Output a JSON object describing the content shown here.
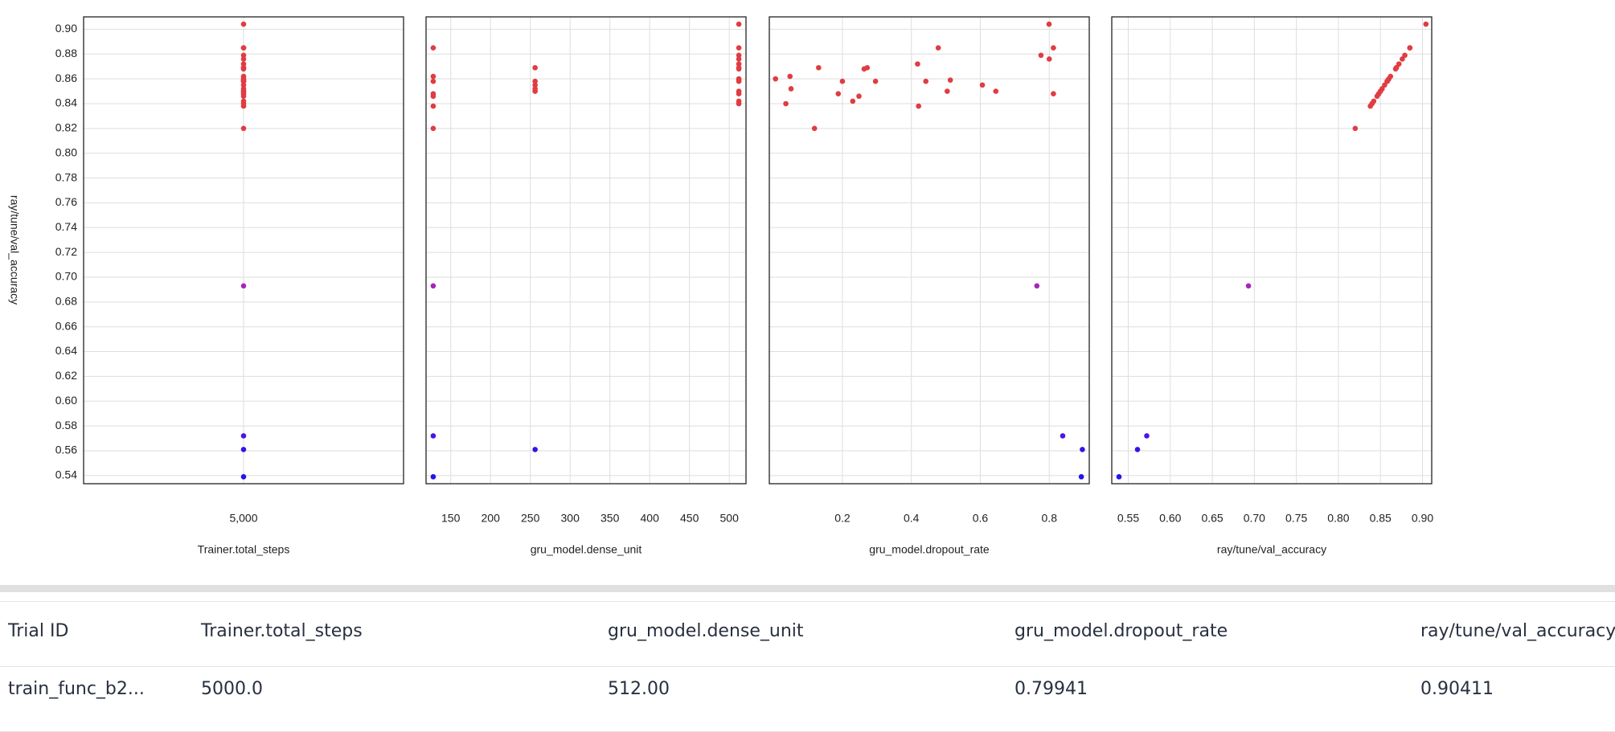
{
  "chart_data": [
    {
      "type": "scatter",
      "xlabel": "Trainer.total_steps",
      "ylabel": "ray/tune/val_accuracy",
      "grid": true,
      "x": [
        5000,
        5000,
        5000,
        5000,
        5000,
        5000,
        5000,
        5000,
        5000,
        5000,
        5000,
        5000,
        5000,
        5000,
        5000,
        5000,
        5000,
        5000,
        5000,
        5000,
        5000,
        5000,
        5000,
        5000,
        5000,
        5000,
        5000,
        5000,
        5000,
        5000
      ],
      "series": [
        {
          "values": [
            0.86,
            0.84,
            0.862,
            0.852,
            0.82,
            0.869,
            0.848,
            0.858,
            0.842,
            0.846,
            0.868,
            0.869,
            0.858,
            0.872,
            0.838,
            0.858,
            0.885,
            0.85,
            0.859,
            0.855,
            0.85,
            0.693,
            0.879,
            0.90411,
            0.876,
            0.885,
            0.848,
            0.572,
            0.539,
            0.561
          ],
          "colors": [
            "#e03c41",
            "#e03c41",
            "#e03c41",
            "#e03c41",
            "#e03c41",
            "#e03c41",
            "#e03c41",
            "#e03c41",
            "#e03c41",
            "#e03c41",
            "#e03c41",
            "#e03c41",
            "#e03c41",
            "#e03c41",
            "#e03c41",
            "#e03c41",
            "#e03c41",
            "#e03c41",
            "#e03c41",
            "#e03c41",
            "#e03c41",
            "#a626b8",
            "#e03c41",
            "#e03c41",
            "#e03c41",
            "#e03c41",
            "#e03c41",
            "#4a16e6",
            "#2315ea",
            "#3a10e8"
          ]
        }
      ],
      "xlim": [
        4000,
        6000
      ],
      "xticks": [
        {
          "value": 5000,
          "label": "5,000"
        }
      ],
      "ylim": [
        0.5334,
        0.91
      ],
      "yticks": [
        {
          "value": 0.54,
          "label": "0.54"
        },
        {
          "value": 0.56,
          "label": "0.56"
        },
        {
          "value": 0.58,
          "label": "0.58"
        },
        {
          "value": 0.6,
          "label": "0.60"
        },
        {
          "value": 0.62,
          "label": "0.62"
        },
        {
          "value": 0.64,
          "label": "0.64"
        },
        {
          "value": 0.66,
          "label": "0.66"
        },
        {
          "value": 0.68,
          "label": "0.68"
        },
        {
          "value": 0.7,
          "label": "0.70"
        },
        {
          "value": 0.72,
          "label": "0.72"
        },
        {
          "value": 0.74,
          "label": "0.74"
        },
        {
          "value": 0.76,
          "label": "0.76"
        },
        {
          "value": 0.78,
          "label": "0.78"
        },
        {
          "value": 0.8,
          "label": "0.80"
        },
        {
          "value": 0.82,
          "label": "0.82"
        },
        {
          "value": 0.84,
          "label": "0.84"
        },
        {
          "value": 0.86,
          "label": "0.86"
        },
        {
          "value": 0.88,
          "label": "0.88"
        },
        {
          "value": 0.9,
          "label": "0.90"
        }
      ]
    },
    {
      "type": "scatter",
      "xlabel": "gru_model.dense_unit",
      "grid": true,
      "x": [
        512,
        512,
        128,
        256,
        128,
        256,
        128,
        128,
        512,
        128,
        512,
        512,
        256,
        512,
        128,
        512,
        128,
        256,
        512,
        256,
        512,
        128,
        512,
        512,
        512,
        512,
        512,
        128,
        128,
        256
      ],
      "series": [
        {
          "values": [
            0.86,
            0.84,
            0.862,
            0.852,
            0.82,
            0.869,
            0.848,
            0.858,
            0.842,
            0.846,
            0.868,
            0.869,
            0.858,
            0.872,
            0.838,
            0.858,
            0.885,
            0.85,
            0.859,
            0.855,
            0.85,
            0.693,
            0.879,
            0.90411,
            0.876,
            0.885,
            0.848,
            0.572,
            0.539,
            0.561
          ]
        }
      ],
      "xlim": [
        119,
        521
      ],
      "xticks": [
        150,
        200,
        250,
        300,
        350,
        400,
        450,
        500
      ],
      "ylim": [
        0.5334,
        0.91
      ]
    },
    {
      "type": "scatter",
      "xlabel": "gru_model.dropout_rate",
      "grid": true,
      "x": [
        0.006,
        0.036,
        0.048,
        0.051,
        0.119,
        0.131,
        0.188,
        0.2,
        0.23,
        0.248,
        0.263,
        0.272,
        0.296,
        0.418,
        0.421,
        0.442,
        0.478,
        0.504,
        0.513,
        0.606,
        0.645,
        0.764,
        0.776,
        0.79941,
        0.8,
        0.812,
        0.812,
        0.839,
        0.893,
        0.896
      ],
      "series": [
        {
          "values": [
            0.86,
            0.84,
            0.862,
            0.852,
            0.82,
            0.869,
            0.848,
            0.858,
            0.842,
            0.846,
            0.868,
            0.869,
            0.858,
            0.872,
            0.838,
            0.858,
            0.885,
            0.85,
            0.859,
            0.855,
            0.85,
            0.693,
            0.879,
            0.90411,
            0.876,
            0.885,
            0.848,
            0.572,
            0.539,
            0.561
          ]
        }
      ],
      "xlim": [
        -0.012,
        0.916
      ],
      "xticks": [
        0.2,
        0.4,
        0.6,
        0.8
      ],
      "ylim": [
        0.5334,
        0.91
      ]
    },
    {
      "type": "scatter",
      "xlabel": "ray/tune/val_accuracy",
      "grid": true,
      "x": [
        0.86,
        0.84,
        0.862,
        0.852,
        0.82,
        0.869,
        0.848,
        0.858,
        0.842,
        0.846,
        0.868,
        0.869,
        0.858,
        0.872,
        0.838,
        0.858,
        0.885,
        0.85,
        0.859,
        0.855,
        0.85,
        0.693,
        0.879,
        0.90411,
        0.876,
        0.885,
        0.848,
        0.572,
        0.539,
        0.561
      ],
      "series": [
        {
          "values": [
            0.86,
            0.84,
            0.862,
            0.852,
            0.82,
            0.869,
            0.848,
            0.858,
            0.842,
            0.846,
            0.868,
            0.869,
            0.858,
            0.872,
            0.838,
            0.858,
            0.885,
            0.85,
            0.859,
            0.855,
            0.85,
            0.693,
            0.879,
            0.90411,
            0.876,
            0.885,
            0.848,
            0.572,
            0.539,
            0.561
          ]
        }
      ],
      "xlim": [
        0.5304,
        0.911
      ],
      "xticks": [
        0.55,
        {
          "value": 0.6,
          "label": "0.60"
        },
        0.65,
        {
          "value": 0.7,
          "label": "0.70"
        },
        0.75,
        {
          "value": 0.8,
          "label": "0.80"
        },
        0.85,
        {
          "value": 0.9,
          "label": "0.90"
        }
      ],
      "ylim": [
        0.5334,
        0.91
      ]
    }
  ],
  "table": {
    "columns": [
      "Trial ID",
      "Trainer.total_steps",
      "gru_model.dense_unit",
      "gru_model.dropout_rate",
      "ray/tune/val_accuracy"
    ],
    "rows": [
      [
        "train_func_b2...",
        "5000.0",
        "512.00",
        "0.79941",
        "0.90411"
      ]
    ]
  }
}
